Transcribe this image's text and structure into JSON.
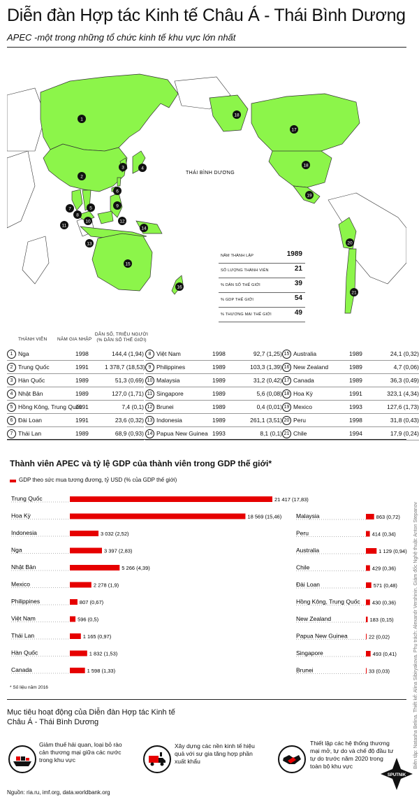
{
  "header": {
    "title": "Diễn đàn Hợp tác Kinh tế Châu Á - Thái Bình Dương",
    "subtitle": "APEC -một trong những tổ chức kinh tế khu vực lớn nhất"
  },
  "map": {
    "ocean_label": "THÁI BÌNH DƯƠNG",
    "land_color": "#8cf54a",
    "markers": [
      "1",
      "2",
      "3",
      "4",
      "5",
      "6",
      "7",
      "8",
      "9",
      "10",
      "11",
      "12",
      "13",
      "14",
      "15",
      "16",
      "17",
      "18",
      "18",
      "19",
      "20",
      "21"
    ],
    "stats": [
      {
        "label": "NĂM THÀNH LẬP",
        "value": "1989"
      },
      {
        "label": "SỐ LƯỢNG THÀNH VIÊN",
        "value": "21"
      },
      {
        "label": "% DÂN SỐ THẾ GIỚI",
        "value": "39"
      },
      {
        "label": "% GDP THẾ GIỚI",
        "value": "54"
      },
      {
        "label": "% THƯƠNG MẠI THẾ GIỚI",
        "value": "49"
      }
    ]
  },
  "members": {
    "headers": {
      "member": "THÀNH VIÊN",
      "year": "NĂM GIA NHẬP",
      "population": "DÂN SỐ, TRIỆU NGƯỜI (% DÂN SỐ THẾ GIỚI)"
    },
    "rows": [
      {
        "num": "1",
        "name": "Nga",
        "year": "1998",
        "pop": "144,4 (1,94)"
      },
      {
        "num": "2",
        "name": "Trung Quốc",
        "year": "1991",
        "pop": "1 378,7 (18,53)"
      },
      {
        "num": "3",
        "name": "Hàn Quốc",
        "year": "1989",
        "pop": "51,3 (0,69)"
      },
      {
        "num": "4",
        "name": "Nhật Bản",
        "year": "1989",
        "pop": "127,0  (1,71)"
      },
      {
        "num": "5",
        "name": "Hồng Kông, Trung Quốc",
        "year": "1991",
        "pop": "7,4 (0,1)"
      },
      {
        "num": "6",
        "name": "Đài Loan",
        "year": "1991",
        "pop": "23,6 (0,32)"
      },
      {
        "num": "7",
        "name": "Thái Lan",
        "year": "1989",
        "pop": "68,9 (0,93)"
      },
      {
        "num": "8",
        "name": "Việt Nam",
        "year": "1998",
        "pop": "92,7 (1,25)"
      },
      {
        "num": "9",
        "name": "Philippines",
        "year": "1989",
        "pop": "103,3 (1,39)"
      },
      {
        "num": "10",
        "name": "Malaysia",
        "year": "1989",
        "pop": "31,2 (0,42)"
      },
      {
        "num": "11",
        "name": "Singapore",
        "year": "1989",
        "pop": "5,6 (0,08)"
      },
      {
        "num": "12",
        "name": "Brunei",
        "year": "1989",
        "pop": "0,4 (0,01)"
      },
      {
        "num": "13",
        "name": "Indonesia",
        "year": "1989",
        "pop": "261,1 (3,51)"
      },
      {
        "num": "14",
        "name": "Papua New Guinea",
        "year": "1993",
        "pop": "8,1 (0,1)"
      },
      {
        "num": "15",
        "name": "Australia",
        "year": "1989",
        "pop": "24,1 (0,32)"
      },
      {
        "num": "16",
        "name": "New Zealand",
        "year": "1989",
        "pop": "4,7 (0,06)"
      },
      {
        "num": "17",
        "name": "Canada",
        "year": "1989",
        "pop": "36,3 (0,49)"
      },
      {
        "num": "18",
        "name": "Hoa Kỳ",
        "year": "1991",
        "pop": "323,1 (4,34)"
      },
      {
        "num": "19",
        "name": "Mexico",
        "year": "1993",
        "pop": "127,6 (1,73)"
      },
      {
        "num": "20",
        "name": "Peru",
        "year": "1998",
        "pop": "31,8 (0,43)"
      },
      {
        "num": "21",
        "name": "Chile",
        "year": "1994",
        "pop": "17,9 (0,24)"
      }
    ]
  },
  "chart_data": {
    "type": "bar",
    "title": "Thành viên APEC và tỷ lệ GDP của thành viên trong GDP thế giới*",
    "legend": "GDP theo sức mua tương đương, tỷ  USD (% của GDP thế giới)",
    "bar_color": "#e60000",
    "series": [
      {
        "values": [
          {
            "category": "Trung Quốc",
            "value": 21417,
            "label": "21 417 (17,83)"
          },
          {
            "category": "Hoa Kỳ",
            "value": 18569,
            "label": "18 569 (15,46)"
          },
          {
            "category": "Indonesia",
            "value": 3032,
            "label": "3 032 (2,52)"
          },
          {
            "category": "Nga",
            "value": 3397,
            "label": "3 397 (2,83)"
          },
          {
            "category": "Nhật Bản",
            "value": 5266,
            "label": "5 266 (4,39)"
          },
          {
            "category": "Mexico",
            "value": 2278,
            "label": "2 278 (1,9)"
          },
          {
            "category": "Philippines",
            "value": 807,
            "label": "807 (0,67)"
          },
          {
            "category": "Việt Nam",
            "value": 596,
            "label": "596 (0,5)"
          },
          {
            "category": "Thái Lan",
            "value": 1165,
            "label": "1 165 (0,97)"
          },
          {
            "category": "Hàn Quốc",
            "value": 1832,
            "label": "1 832 (1,53)"
          },
          {
            "category": "Canada",
            "value": 1598,
            "label": "1 598 (1,33)"
          }
        ]
      },
      {
        "values": [
          {
            "category": "Malaysia",
            "value": 863,
            "label": "863 (0,72)"
          },
          {
            "category": "Peru",
            "value": 414,
            "label": "414 (0,34)"
          },
          {
            "category": "Australia",
            "value": 1129,
            "label": "1 129 (0,94)"
          },
          {
            "category": "Chile",
            "value": 429,
            "label": "429 (0,36)"
          },
          {
            "category": "Đài Loan",
            "value": 571,
            "label": "571 (0,48)"
          },
          {
            "category": "Hồng Kông, Trung Quốc",
            "value": 430,
            "label": "430 (0,36)"
          },
          {
            "category": "New Zealand",
            "value": 183,
            "label": "183 (0,15)"
          },
          {
            "category": "Papua New Guinea",
            "value": 22,
            "label": "22 (0,02)"
          },
          {
            "category": "Singapore",
            "value": 493,
            "label": "493 (0,41)"
          },
          {
            "category": "Brunei",
            "value": 33,
            "label": "33 (0,03)"
          }
        ]
      }
    ],
    "note": "* Số liệu năm 2016"
  },
  "goals": {
    "title": "Mục tiêu hoạt động của Diễn đàn Hợp tác Kinh tế Châu Á - Thái Bình Dương",
    "items": [
      {
        "icon": "cargo-ship-icon",
        "text": "Giảm thuế hải quan, loại bỏ rào cản thương mại giữa các nước trong khu vực"
      },
      {
        "icon": "truck-factory-icon",
        "text": "Xây dựng các nền kinh tế hiệu quả với sự gia tăng hợp phần xuất khẩu"
      },
      {
        "icon": "handshake-icon",
        "text": "Thiết lập các hệ thống thương mại mở, tự do và chế độ đầu tư tự do trước năm 2020 trong toàn bộ khu vực"
      }
    ]
  },
  "footer": {
    "sources": "Nguồn: ria.ru, imf.org, data.worldbank.org",
    "credits": "Biên tập: Natasha Belina. Thiết kế: Alina Sibiryakova. Phụ trách: Alexandr Vershinin. Giám đốc Nghệ thuật: Anton Stepanov",
    "logo": "SPUTNIK"
  }
}
